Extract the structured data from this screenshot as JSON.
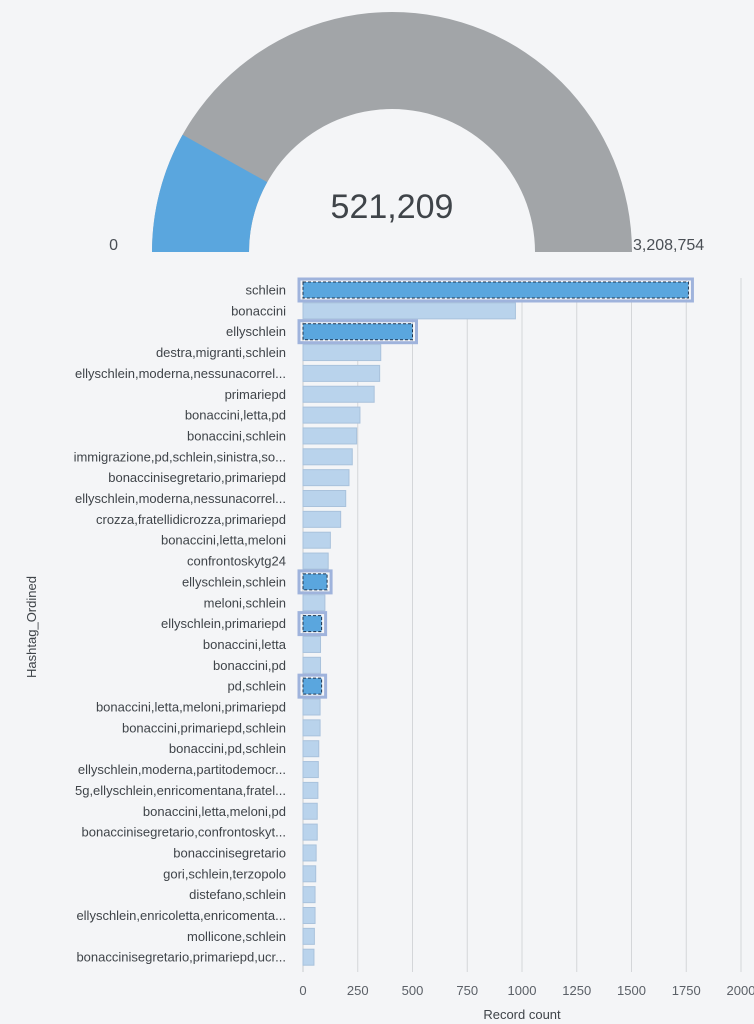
{
  "gauge": {
    "value": 521209,
    "value_label": "521,209",
    "min": 0,
    "min_label": "0",
    "max": 3208754,
    "max_label": "3,208,754",
    "fill_color": "#5aa6de",
    "track_color": "#a2a5a8"
  },
  "chart_data": {
    "type": "bar",
    "orientation": "horizontal",
    "xlabel": "Record count",
    "ylabel": "Hashtag_Ordined",
    "xlim": [
      0,
      2000
    ],
    "xticks": [
      "0",
      "250",
      "500",
      "750",
      "1000",
      "1250",
      "1500",
      "1750",
      "2000"
    ],
    "grid": true,
    "bar_color": "#b9d3ec",
    "selected_color": "#5aa6de",
    "categories": [
      "schlein",
      "bonaccini",
      "ellyschlein",
      "destra,migranti,schlein",
      "ellyschlein,moderna,nessunacorrel...",
      "primariepd",
      "bonaccini,letta,pd",
      "bonaccini,schlein",
      "immigrazione,pd,schlein,sinistra,so...",
      "bonaccinisegretario,primariepd",
      "ellyschlein,moderna,nessunacorrel...",
      "crozza,fratellidicrozza,primariepd",
      "bonaccini,letta,meloni",
      "confrontoskytg24",
      "ellyschlein,schlein",
      "meloni,schlein",
      "ellyschlein,primariepd",
      "bonaccini,letta",
      "bonaccini,pd",
      "pd,schlein",
      "bonaccini,letta,meloni,primariepd",
      "bonaccini,primariepd,schlein",
      "bonaccini,pd,schlein",
      "ellyschlein,moderna,partitodemocr...",
      "5g,ellyschlein,enricomentana,fratel...",
      "bonaccini,letta,meloni,pd",
      "bonaccinisegretario,confrontoskyt...",
      "bonaccinisegretario",
      "gori,schlein,terzopolo",
      "distefano,schlein",
      "ellyschlein,enricoletta,enricomenta...",
      "mollicone,schlein",
      "bonaccinisegretario,primariepd,ucr..."
    ],
    "values": [
      1760,
      970,
      500,
      355,
      350,
      325,
      260,
      245,
      225,
      210,
      195,
      172,
      125,
      115,
      110,
      100,
      85,
      80,
      80,
      85,
      78,
      78,
      72,
      70,
      68,
      65,
      65,
      60,
      58,
      55,
      55,
      52,
      50
    ],
    "selected": [
      0,
      2,
      14,
      16,
      19
    ]
  }
}
